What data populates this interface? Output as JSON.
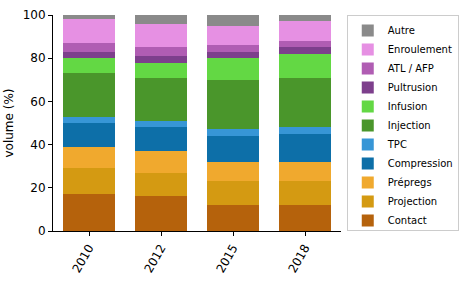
{
  "chart_data": {
    "type": "bar",
    "stacked": true,
    "y_label": "volume (%)",
    "categories": [
      "2010",
      "2012",
      "2015",
      "2018"
    ],
    "ylim": [
      0,
      100
    ],
    "yticks": [
      0,
      20,
      40,
      60,
      80,
      100
    ],
    "grid": false,
    "legend": "right",
    "series": [
      {
        "name": "Contact",
        "color": "#b5620c",
        "values": [
          17,
          16,
          12,
          12
        ]
      },
      {
        "name": "Projection",
        "color": "#d49a12",
        "values": [
          12,
          11,
          11,
          11
        ]
      },
      {
        "name": "Prépregs",
        "color": "#f0a92e",
        "values": [
          10,
          10,
          9,
          9
        ]
      },
      {
        "name": "Compression",
        "color": "#0d6fa8",
        "values": [
          11,
          11,
          12,
          13
        ]
      },
      {
        "name": "TPC",
        "color": "#3796d6",
        "values": [
          3,
          3,
          3,
          3
        ]
      },
      {
        "name": "Injection",
        "color": "#4a962b",
        "values": [
          20,
          20,
          23,
          23
        ]
      },
      {
        "name": "Infusion",
        "color": "#63d844",
        "values": [
          7,
          7,
          10,
          11
        ]
      },
      {
        "name": "Pultrusion",
        "color": "#7d3f8c",
        "values": [
          3,
          3,
          3,
          3
        ]
      },
      {
        "name": "ATL / AFP",
        "color": "#b05db3",
        "values": [
          4,
          4,
          3,
          3
        ]
      },
      {
        "name": "Enroulement",
        "color": "#e690e3",
        "values": [
          11,
          11,
          9,
          9
        ]
      },
      {
        "name": "Autre",
        "color": "#8a8a8a",
        "values": [
          2,
          4,
          5,
          3
        ]
      }
    ]
  }
}
